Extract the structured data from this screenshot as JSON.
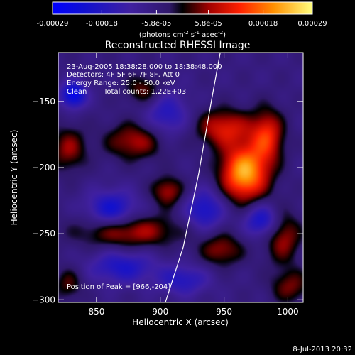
{
  "chart_data": {
    "type": "heatmap",
    "title": "Reconstructed RHESSI Image",
    "xlabel": "Heliocentric X (arcsec)",
    "ylabel": "Heliocentric Y (arcsec)",
    "xlim": [
      820,
      1012
    ],
    "ylim": [
      -302,
      -113
    ],
    "xticks": [
      850,
      900,
      950,
      1000
    ],
    "yticks": [
      -150,
      -200,
      -250,
      -300
    ],
    "colorbar": {
      "min": -0.00029,
      "max": 0.00029,
      "tick_values": [
        -0.00029,
        -0.00018,
        -5.8e-05,
        5.8e-05,
        0.00018,
        0.00029
      ],
      "tick_labels": [
        "-0.00029",
        "-0.00018",
        "-5.8e-05",
        "5.8e-05",
        "0.00018",
        "0.00029"
      ],
      "units_main": "(photons cm",
      "units_exp1": "-2",
      "units_mid": " s",
      "units_exp2": "-1",
      "units_end": " asec",
      "units_exp3": "-2",
      "units_close": ")"
    },
    "annotations": {
      "line1": "23-Aug-2005 18:38:28.000 to 18:38:48.000",
      "line2": "Detectors: 4F 5F 6F 7F 8F, Att 0",
      "line3": "Energy Range: 25.0 - 50.0 keV",
      "line4a": "Clean",
      "line4b": "Total counts: 1.22E+03",
      "peak": "Position of Peak = [966,-204]"
    },
    "peak": {
      "x": 966,
      "y": -204
    },
    "limb": [
      [
        904,
        -302
      ],
      [
        918,
        -260
      ],
      [
        930,
        -205
      ],
      [
        940,
        -150
      ],
      [
        947,
        -113
      ]
    ],
    "sources": [
      {
        "x": 966,
        "y": -204,
        "sx": 13,
        "sy": 15,
        "amp": 1.0
      },
      {
        "x": 950,
        "y": -170,
        "sx": 15,
        "sy": 10,
        "amp": 0.55
      },
      {
        "x": 984,
        "y": -176,
        "sx": 9,
        "sy": 14,
        "amp": 0.6
      },
      {
        "x": 880,
        "y": -180,
        "sx": 16,
        "sy": 10,
        "amp": 0.45
      },
      {
        "x": 906,
        "y": -218,
        "sx": 9,
        "sy": 8,
        "amp": 0.45
      },
      {
        "x": 887,
        "y": -141,
        "sx": 10,
        "sy": 8,
        "amp": 0.35
      },
      {
        "x": 828,
        "y": -186,
        "sx": 10,
        "sy": 12,
        "amp": 0.4
      },
      {
        "x": 875,
        "y": -248,
        "sx": 28,
        "sy": 9,
        "amp": 0.5
      },
      {
        "x": 996,
        "y": -252,
        "sx": 10,
        "sy": 14,
        "amp": 0.45
      },
      {
        "x": 948,
        "y": -262,
        "sx": 12,
        "sy": 9,
        "amp": 0.4
      },
      {
        "x": 1002,
        "y": -290,
        "sx": 11,
        "sy": 9,
        "amp": 0.35
      },
      {
        "x": 828,
        "y": -288,
        "sx": 8,
        "sy": 9,
        "amp": 0.3
      },
      {
        "x": 832,
        "y": -145,
        "sx": 7,
        "sy": 7,
        "amp": -0.7
      },
      {
        "x": 862,
        "y": -232,
        "sx": 14,
        "sy": 10,
        "amp": -0.55
      },
      {
        "x": 935,
        "y": -232,
        "sx": 11,
        "sy": 11,
        "amp": -0.5
      },
      {
        "x": 980,
        "y": -240,
        "sx": 10,
        "sy": 9,
        "amp": -0.55
      },
      {
        "x": 870,
        "y": -275,
        "sx": 18,
        "sy": 9,
        "amp": -0.45
      },
      {
        "x": 918,
        "y": -285,
        "sx": 14,
        "sy": 8,
        "amp": -0.4
      },
      {
        "x": 905,
        "y": -160,
        "sx": 12,
        "sy": 12,
        "amp": -0.4
      }
    ]
  },
  "timestamp": "8-Jul-2013 20:32"
}
